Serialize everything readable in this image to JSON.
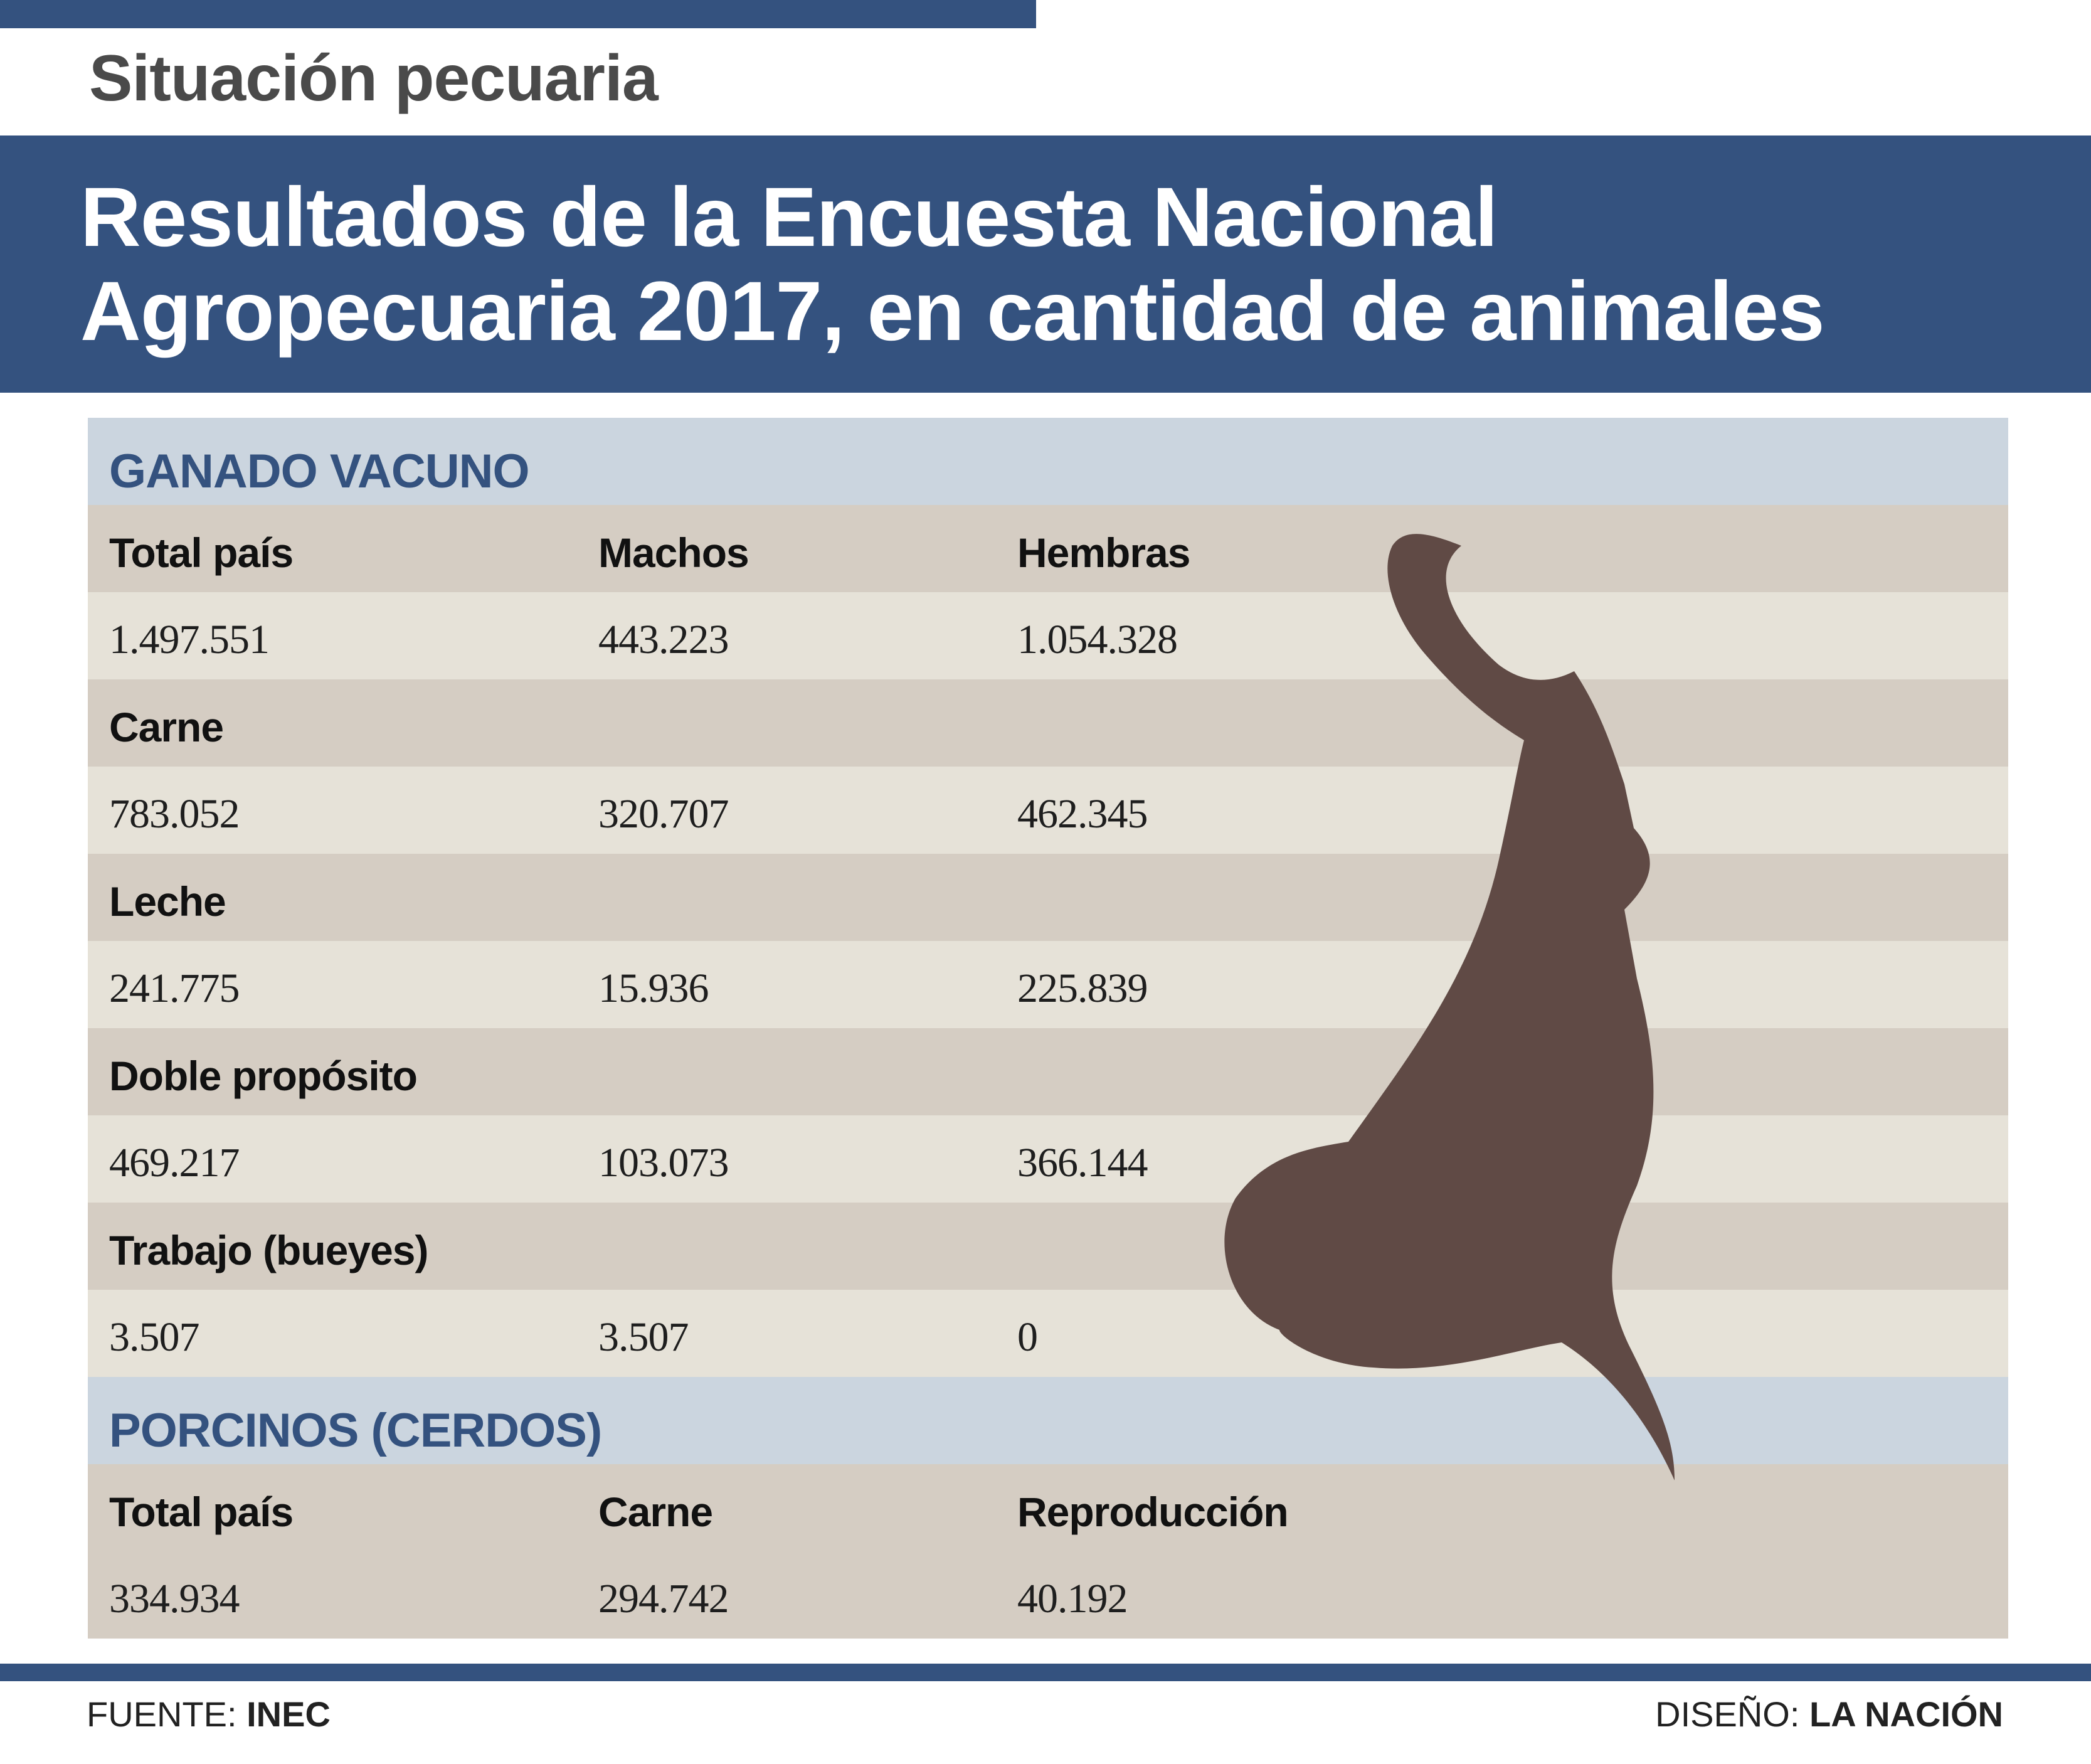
{
  "header": {
    "kicker": "Situación pecuaria",
    "title_line1": "Resultados de la Encuesta Nacional",
    "title_line2": "Agropecuaria 2017, en cantidad de animales"
  },
  "colors": {
    "brand_blue": "#34527f",
    "section_band": "#cbd5df",
    "row_dark": "#d5cdc3",
    "row_light": "#e6e2d8",
    "cow": "#604a45"
  },
  "icon": "cow-head-icon",
  "chart_data": {
    "type": "table",
    "sections": [
      {
        "title": "GANADO VACUNO",
        "columns": [
          "Total país",
          "Machos",
          "Hembras"
        ],
        "rows": [
          {
            "label": "",
            "values": [
              "1.497.551",
              "443.223",
              "1.054.328"
            ]
          },
          {
            "label": "Carne",
            "values": [
              "783.052",
              "320.707",
              "462.345"
            ]
          },
          {
            "label": "Leche",
            "values": [
              "241.775",
              "15.936",
              "225.839"
            ]
          },
          {
            "label": "Doble propósito",
            "values": [
              "469.217",
              "103.073",
              "366.144"
            ]
          },
          {
            "label": "Trabajo (bueyes)",
            "values": [
              "3.507",
              "3.507",
              "0"
            ]
          }
        ]
      },
      {
        "title": "PORCINOS (CERDOS)",
        "columns": [
          "Total país",
          "Carne",
          "Reproducción"
        ],
        "rows": [
          {
            "label": "",
            "values": [
              "334.934",
              "294.742",
              "40.192"
            ]
          }
        ]
      }
    ]
  },
  "footer": {
    "source_label": "FUENTE: ",
    "source_value": "INEC",
    "design_label": "DISEÑO: ",
    "design_value": "LA NACIÓN"
  }
}
